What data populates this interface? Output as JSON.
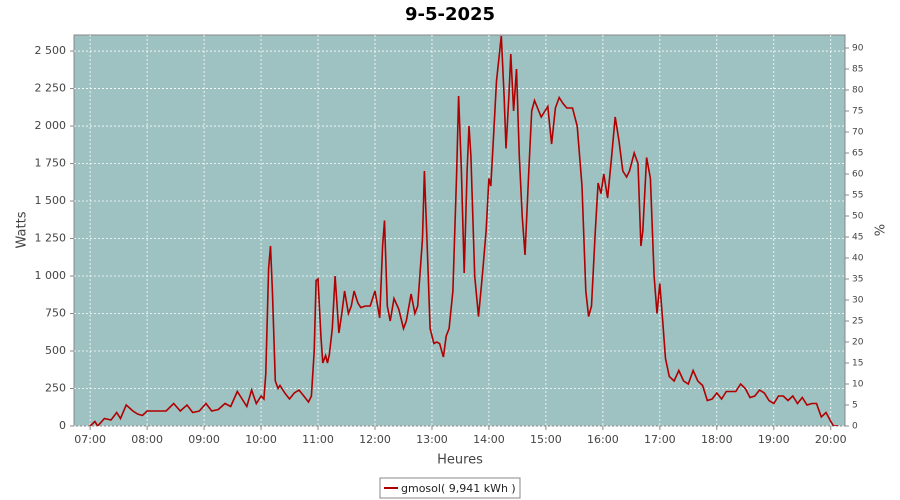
{
  "chart_data": {
    "type": "line",
    "title": "9-5-2025",
    "x_label": "Heures",
    "y_label": "Watts",
    "y2_label": "%",
    "x": [
      "07:00",
      "07:05",
      "07:08",
      "07:15",
      "07:22",
      "07:28",
      "07:32",
      "07:38",
      "07:45",
      "07:50",
      "07:55",
      "08:00",
      "08:10",
      "08:20",
      "08:28",
      "08:35",
      "08:42",
      "08:48",
      "08:55",
      "09:02",
      "09:08",
      "09:15",
      "09:22",
      "09:28",
      "09:35",
      "09:40",
      "09:45",
      "09:50",
      "09:55",
      "10:00",
      "10:03",
      "10:05",
      "10:08",
      "10:10",
      "10:12",
      "10:15",
      "10:18",
      "10:20",
      "10:25",
      "10:30",
      "10:35",
      "10:40",
      "10:45",
      "10:50",
      "10:53",
      "10:56",
      "10:58",
      "11:00",
      "11:03",
      "11:05",
      "11:08",
      "11:10",
      "11:12",
      "11:15",
      "11:18",
      "11:22",
      "11:25",
      "11:28",
      "11:32",
      "11:35",
      "11:38",
      "11:42",
      "11:45",
      "11:50",
      "11:55",
      "12:00",
      "12:05",
      "12:08",
      "12:10",
      "12:13",
      "12:16",
      "12:20",
      "12:25",
      "12:30",
      "12:33",
      "12:38",
      "12:42",
      "12:45",
      "12:50",
      "12:52",
      "12:55",
      "12:58",
      "13:02",
      "13:05",
      "13:08",
      "13:12",
      "13:15",
      "13:18",
      "13:22",
      "13:26",
      "13:28",
      "13:31",
      "13:34",
      "13:37",
      "13:39",
      "13:41",
      "13:45",
      "13:49",
      "13:53",
      "13:57",
      "14:00",
      "14:02",
      "14:05",
      "14:08",
      "14:13",
      "14:16",
      "14:18",
      "14:21",
      "14:23",
      "14:26",
      "14:29",
      "14:32",
      "14:35",
      "14:38",
      "14:42",
      "14:45",
      "14:48",
      "14:55",
      "15:02",
      "15:06",
      "15:10",
      "15:14",
      "15:18",
      "15:22",
      "15:28",
      "15:33",
      "15:38",
      "15:42",
      "15:45",
      "15:48",
      "15:52",
      "15:55",
      "15:58",
      "16:01",
      "16:05",
      "16:09",
      "16:13",
      "16:17",
      "16:21",
      "16:25",
      "16:28",
      "16:33",
      "16:37",
      "16:40",
      "16:42",
      "16:46",
      "16:50",
      "16:54",
      "16:57",
      "17:00",
      "17:03",
      "17:06",
      "17:10",
      "17:15",
      "17:20",
      "17:25",
      "17:30",
      "17:35",
      "17:40",
      "17:45",
      "17:50",
      "17:55",
      "18:00",
      "18:05",
      "18:10",
      "18:15",
      "18:20",
      "18:25",
      "18:30",
      "18:35",
      "18:40",
      "18:45",
      "18:50",
      "18:55",
      "19:00",
      "19:05",
      "19:10",
      "19:15",
      "19:20",
      "19:25",
      "19:30",
      "19:35",
      "19:40",
      "19:45",
      "19:50",
      "19:55",
      "20:00",
      "20:03",
      "20:08"
    ],
    "series": [
      {
        "name": "gmosol( 9,941 kWh )",
        "color": "#b00000",
        "values": [
          0,
          30,
          0,
          50,
          40,
          90,
          50,
          140,
          100,
          80,
          70,
          100,
          100,
          100,
          150,
          100,
          140,
          90,
          100,
          150,
          100,
          110,
          150,
          130,
          230,
          180,
          130,
          240,
          150,
          200,
          180,
          350,
          1050,
          1200,
          900,
          300,
          250,
          270,
          220,
          180,
          220,
          240,
          200,
          160,
          200,
          500,
          970,
          980,
          600,
          420,
          470,
          420,
          480,
          650,
          1000,
          620,
          750,
          900,
          750,
          800,
          900,
          820,
          790,
          800,
          800,
          900,
          720,
          1200,
          1370,
          800,
          700,
          850,
          780,
          650,
          700,
          880,
          750,
          800,
          1250,
          1700,
          1200,
          650,
          550,
          560,
          550,
          460,
          600,
          650,
          900,
          1700,
          2200,
          1700,
          1020,
          1700,
          2000,
          1800,
          1000,
          730,
          1000,
          1300,
          1650,
          1600,
          1950,
          2300,
          2600,
          2200,
          1850,
          2200,
          2480,
          2100,
          2380,
          1800,
          1400,
          1140,
          1700,
          2100,
          2170,
          2060,
          2130,
          1880,
          2120,
          2190,
          2150,
          2120,
          2120,
          2000,
          1600,
          900,
          730,
          800,
          1300,
          1620,
          1550,
          1680,
          1520,
          1780,
          2060,
          1900,
          1700,
          1660,
          1700,
          1820,
          1750,
          1200,
          1300,
          1790,
          1650,
          1000,
          750,
          950,
          700,
          450,
          330,
          300,
          370,
          300,
          280,
          370,
          300,
          270,
          170,
          180,
          220,
          180,
          230,
          230,
          230,
          280,
          250,
          190,
          200,
          240,
          220,
          170,
          150,
          200,
          200,
          170,
          200,
          150,
          190,
          140,
          150,
          150,
          60,
          90,
          30,
          0,
          0
        ]
      }
    ],
    "xlim": [
      "06:43",
      "20:15"
    ],
    "xticks": [
      "07:00",
      "08:00",
      "09:00",
      "10:00",
      "11:00",
      "12:00",
      "13:00",
      "14:00",
      "15:00",
      "16:00",
      "17:00",
      "18:00",
      "19:00",
      "20:00"
    ],
    "ylim": [
      0,
      2607
    ],
    "yticks": [
      0,
      250,
      500,
      750,
      {
        "value": 1000,
        "label": "1 000"
      },
      {
        "value": 1250,
        "label": "1 250"
      },
      {
        "value": 1500,
        "label": "1 500"
      },
      {
        "value": 1750,
        "label": "1 750"
      },
      {
        "value": 2000,
        "label": "2 000"
      },
      {
        "value": 2250,
        "label": "2 250"
      },
      {
        "value": 2500,
        "label": "2 500"
      }
    ],
    "y2lim": [
      0,
      93.1
    ],
    "y2ticks": [
      0,
      5,
      10,
      15,
      20,
      25,
      30,
      35,
      40,
      45,
      50,
      55,
      60,
      65,
      70,
      75,
      80,
      85,
      90
    ],
    "grid": true,
    "plot_background": "#9ec1c1"
  }
}
